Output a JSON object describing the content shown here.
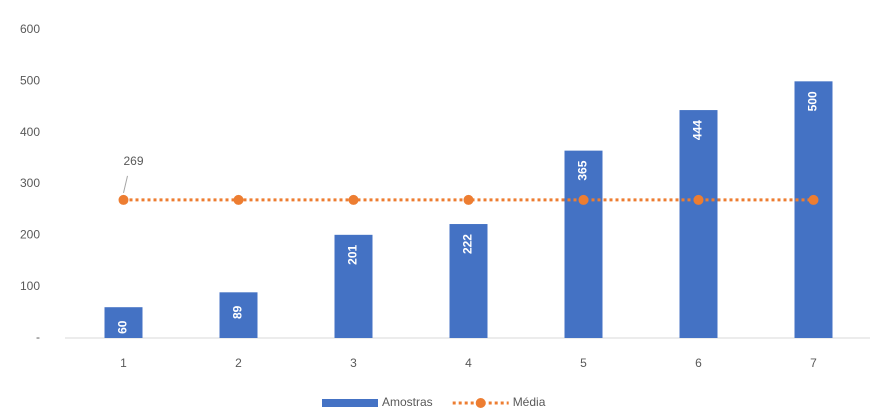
{
  "chart_data": {
    "type": "bar",
    "categories": [
      "1",
      "2",
      "3",
      "4",
      "5",
      "6",
      "7"
    ],
    "series": [
      {
        "name": "Amostras",
        "type": "bar",
        "color": "#4472c4",
        "values": [
          60,
          89,
          201,
          222,
          365,
          444,
          500
        ]
      },
      {
        "name": "Média",
        "type": "line",
        "color": "#ed7d31",
        "values": [
          269,
          269,
          269,
          269,
          269,
          269,
          269
        ]
      }
    ],
    "ylim": [
      0,
      600
    ],
    "yticks": [
      {
        "value": 0,
        "label": "-"
      },
      100,
      200,
      300,
      400,
      500,
      600
    ],
    "grid": false,
    "legend": "bottom"
  }
}
